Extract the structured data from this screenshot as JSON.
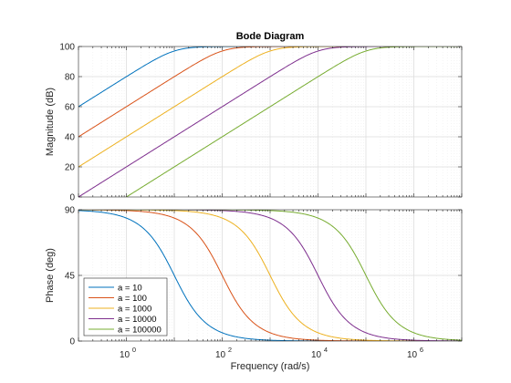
{
  "chart_data": {
    "type": "line",
    "title": "Bode Diagram",
    "xlabel": "Frequency  (rad/s)",
    "xscale": "log",
    "xlim": [
      0.1,
      10000000
    ],
    "x_ticks": [
      1,
      100,
      10000,
      1000000
    ],
    "x_tick_labels": [
      "0",
      "2",
      "4",
      "6"
    ],
    "x_tick_base": "10",
    "grid": true,
    "legend_location": "bottom-left",
    "transfer_function": "s/(s+a)",
    "series": [
      {
        "name": "a = 10",
        "a": 10,
        "color": "#0072BD"
      },
      {
        "name": "a = 100",
        "a": 100,
        "color": "#D95319"
      },
      {
        "name": "a = 1000",
        "a": 1000,
        "color": "#EDB120"
      },
      {
        "name": "a = 10000",
        "a": 10000,
        "color": "#7E2F8E"
      },
      {
        "name": "a = 100000",
        "a": 100000,
        "color": "#77AC30"
      }
    ],
    "panels": [
      {
        "id": "magnitude",
        "ylabel": "Magnitude (dB)",
        "ylim": [
          0,
          100
        ],
        "y_ticks": [
          0,
          20,
          40,
          60,
          80,
          100
        ],
        "y_tick_labels": [
          "0",
          "20",
          "40",
          "60",
          "80",
          "100"
        ]
      },
      {
        "id": "phase",
        "ylabel": "Phase (deg)",
        "ylim": [
          0,
          90
        ],
        "y_ticks": [
          0,
          45,
          90
        ],
        "y_tick_labels": [
          "0",
          "45",
          "90"
        ]
      }
    ]
  }
}
